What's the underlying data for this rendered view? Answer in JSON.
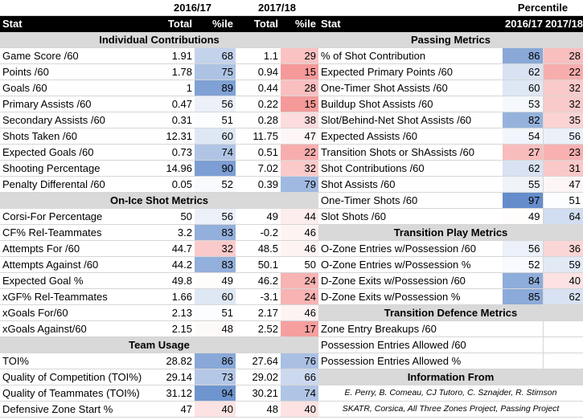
{
  "left": {
    "season_a": "2016/17",
    "season_b": "2017/18",
    "header": [
      "Stat",
      "Total",
      "%ile",
      "Total",
      "%ile"
    ],
    "sections": [
      {
        "title": "Individual Contributions",
        "rows": [
          [
            "Game Score /60",
            "1.91",
            "68",
            "1.1",
            "29"
          ],
          [
            "Points /60",
            "1.78",
            "75",
            "0.94",
            "15"
          ],
          [
            "Goals /60",
            "1",
            "89",
            "0.44",
            "28"
          ],
          [
            "Primary Assists /60",
            "0.47",
            "56",
            "0.22",
            "15"
          ],
          [
            "Secondary Assists /60",
            "0.31",
            "51",
            "0.28",
            "38"
          ],
          [
            "Shots Taken /60",
            "12.31",
            "60",
            "11.75",
            "47"
          ],
          [
            "Expected Goals /60",
            "0.73",
            "74",
            "0.51",
            "22"
          ],
          [
            "Shooting Percentage",
            "14.96",
            "90",
            "7.02",
            "32"
          ],
          [
            "Penalty Differental /60",
            "0.05",
            "52",
            "0.39",
            "79"
          ]
        ]
      },
      {
        "title": "On-Ice Shot Metrics",
        "rows": [
          [
            "Corsi-For Percentage",
            "50",
            "56",
            "49",
            "44"
          ],
          [
            "CF% Rel-Teammates",
            "3.2",
            "83",
            "-0.2",
            "46"
          ],
          [
            "Attempts For /60",
            "44.7",
            "32",
            "48.5",
            "46"
          ],
          [
            "Attempts Against /60",
            "44.2",
            "83",
            "50.1",
            "50"
          ],
          [
            "Expected Goal %",
            "49.8",
            "49",
            "46.2",
            "24"
          ],
          [
            "xGF% Rel-Teammates",
            "1.66",
            "60",
            "-3.1",
            "24"
          ],
          [
            "xGoals For/60",
            "2.13",
            "51",
            "2.17",
            "46"
          ],
          [
            "xGoals Against/60",
            "2.15",
            "48",
            "2.52",
            "17"
          ]
        ]
      },
      {
        "title": "Team Usage",
        "rows": [
          [
            "TOI%",
            "28.82",
            "86",
            "27.64",
            "76"
          ],
          [
            "Quality of Competition (TOI%)",
            "29.14",
            "73",
            "29.02",
            "66"
          ],
          [
            "Quality of Teammates (TOI%)",
            "31.12",
            "94",
            "30.21",
            "74"
          ],
          [
            "Defensive Zone Start %",
            "47",
            "40",
            "48",
            "40"
          ]
        ]
      }
    ]
  },
  "right": {
    "percentile_title": "Percentile",
    "header": [
      "Stat",
      "2016/17",
      "2017/18"
    ],
    "sections": [
      {
        "title": "Passing Metrics",
        "rows": [
          [
            "% of Shot Contribution",
            "86",
            "28"
          ],
          [
            "Expected Primary Points /60",
            "62",
            "22"
          ],
          [
            "One-Timer Shot Assists /60",
            "60",
            "32"
          ],
          [
            "Buildup Shot Assists /60",
            "53",
            "32"
          ],
          [
            "Slot/Behind-Net Shot Assists /60",
            "82",
            "35"
          ],
          [
            "Expected Assists /60",
            "54",
            "56"
          ],
          [
            "Transition Shots or ShAssists /60",
            "27",
            "23"
          ],
          [
            "Shot Contributions /60",
            "62",
            "31"
          ],
          [
            "Shot Assists /60",
            "55",
            "47"
          ],
          [
            "One-Timer Shots /60",
            "97",
            "51"
          ],
          [
            "Slot Shots /60",
            "49",
            "64"
          ]
        ]
      },
      {
        "title": "Transition Play Metrics",
        "rows": [
          [
            "O-Zone Entries w/Possession /60",
            "56",
            "36"
          ],
          [
            "O-Zone Entries w/Possession %",
            "52",
            "59"
          ],
          [
            "D-Zone Exits w/Possession /60",
            "84",
            "40"
          ],
          [
            "D-Zone Exits w/Possession %",
            "85",
            "62"
          ]
        ]
      },
      {
        "title": "Transition Defence Metrics",
        "rows": [
          [
            "Zone Entry Breakups /60",
            "",
            ""
          ],
          [
            "Possession Entries Allowed /60",
            "",
            ""
          ],
          [
            "Possession Entries Allowed %",
            "",
            ""
          ]
        ]
      },
      {
        "title": "Information From",
        "credits": [
          "E. Perry, B. Comeau, CJ Tutoro, C. Sznajder, R. Stimson",
          "SKATR, Corsica, All Three Zones Project, Passing Project"
        ]
      }
    ]
  },
  "colors": {
    "blue": "#5b86c9",
    "red": "#f26d6d",
    "header_bg": "#000000",
    "section_bg": "#d9d9d9"
  }
}
